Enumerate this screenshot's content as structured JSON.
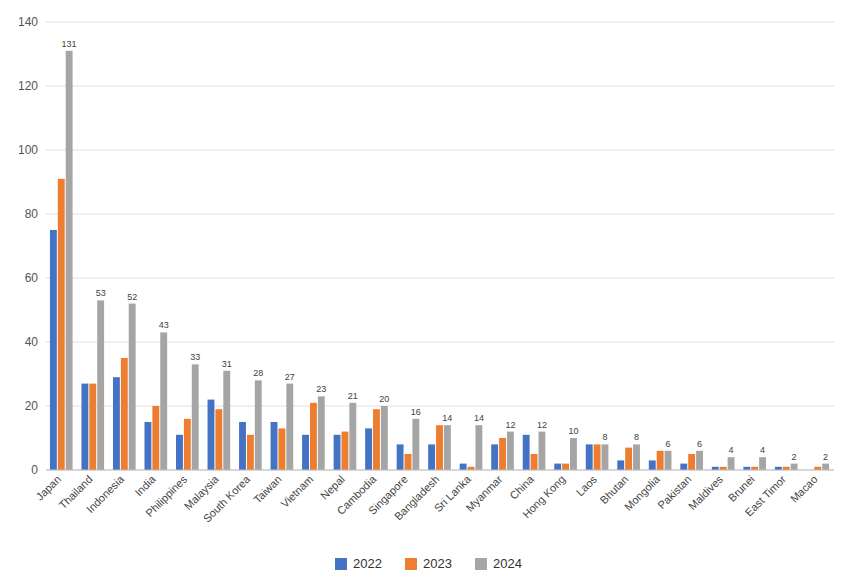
{
  "chart_data": {
    "type": "bar",
    "categories": [
      "Japan",
      "Thailand",
      "Indonesia",
      "India",
      "Philippines",
      "Malaysia",
      "South Korea",
      "Taiwan",
      "Vietnam",
      "Nepal",
      "Cambodia",
      "Singapore",
      "Bangladesh",
      "Sri Lanka",
      "Myanmar",
      "China",
      "Hong Kong",
      "Laos",
      "Bhutan",
      "Mongolia",
      "Pakistan",
      "Maldives",
      "Brunei",
      "East Timor",
      "Macao"
    ],
    "series": [
      {
        "name": "2022",
        "color": "#4472c4",
        "values": [
          75,
          27,
          29,
          15,
          11,
          22,
          15,
          15,
          11,
          11,
          13,
          8,
          8,
          2,
          8,
          11,
          2,
          8,
          3,
          3,
          2,
          1,
          1,
          1,
          0
        ]
      },
      {
        "name": "2023",
        "color": "#ed7d31",
        "values": [
          91,
          27,
          35,
          20,
          16,
          19,
          11,
          13,
          21,
          12,
          19,
          5,
          14,
          1,
          10,
          5,
          2,
          8,
          7,
          6,
          5,
          1,
          1,
          1,
          1
        ]
      },
      {
        "name": "2024",
        "color": "#a5a5a5",
        "data_labels": true,
        "values": [
          131,
          53,
          52,
          43,
          33,
          31,
          28,
          27,
          23,
          21,
          20,
          16,
          14,
          14,
          12,
          12,
          10,
          8,
          8,
          6,
          6,
          4,
          4,
          2,
          2
        ]
      }
    ],
    "ylim": [
      0,
      140
    ],
    "yticks": [
      0,
      20,
      40,
      60,
      80,
      100,
      120,
      140
    ],
    "grid": true,
    "legend": "bottom"
  }
}
